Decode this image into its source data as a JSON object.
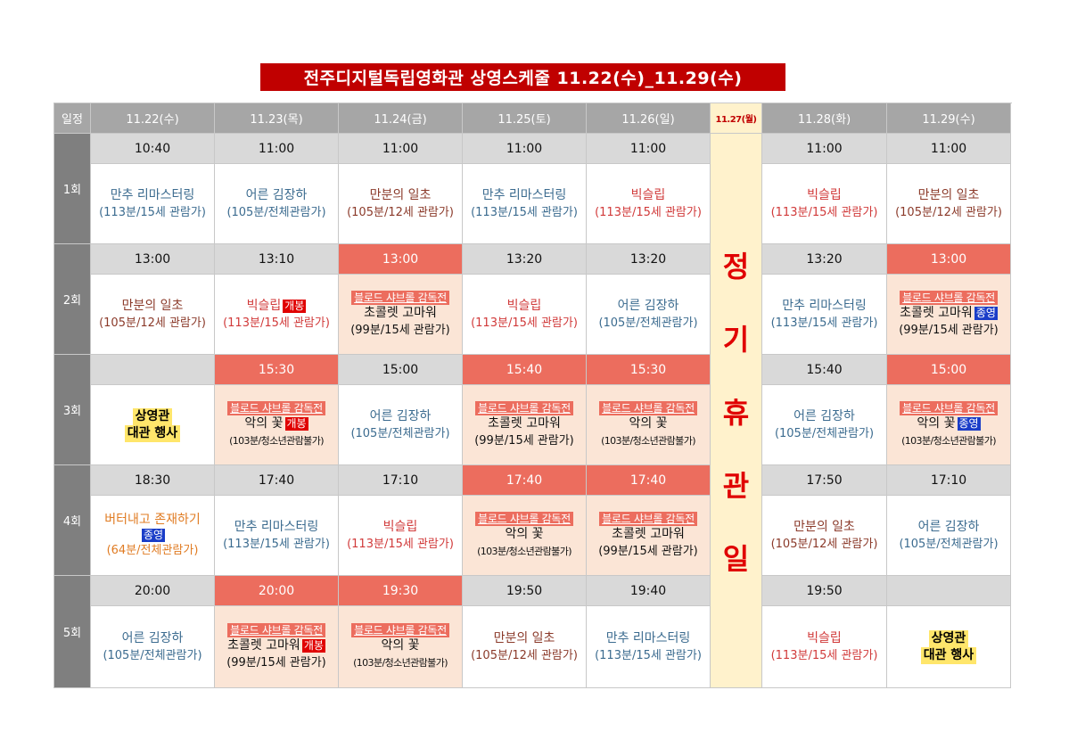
{
  "title": "전주디지털독립영화관 상영스케줄 11.22(수)_11.29(수)",
  "corner": "일정",
  "days": [
    "11.22(수)",
    "11.23(목)",
    "11.24(금)",
    "11.25(토)",
    "11.26(일)",
    "11.27(월)",
    "11.28(화)",
    "11.29(수)"
  ],
  "holiday_chars": [
    "정",
    "기",
    "휴",
    "관",
    "일"
  ],
  "rounds": [
    "1회",
    "2회",
    "3회",
    "4회",
    "5회"
  ],
  "banner_text": "블로드 샤브롤 감독전",
  "badges": {
    "open": "개봉",
    "close": "종영"
  },
  "colors": {
    "title_bg": "#c00000",
    "header_bg": "#a6a6a6",
    "time_bg": "#d9d9d9",
    "special_time_bg": "#ec6d5e",
    "special_cell_bg": "#fbe5d6",
    "holiday_bg": "#fff2cc"
  },
  "schedule": [
    [
      {
        "time": "10:40",
        "title": "만추 리마스터링",
        "info": "(113분/15세 관람가)",
        "color": "blue"
      },
      {
        "time": "11:00",
        "title": "어른 김장하",
        "info": "(105분/전체관람가)",
        "color": "blue"
      },
      {
        "time": "11:00",
        "title": "만분의 일초",
        "info": "(105분/12세 관람가)",
        "color": "brown"
      },
      {
        "time": "11:00",
        "title": "만추 리마스터링",
        "info": "(113분/15세 관람가)",
        "color": "blue"
      },
      {
        "time": "11:00",
        "title": "빅슬립",
        "info": "(113분/15세 관람가)",
        "color": "red"
      },
      {
        "time": "11:00",
        "title": "빅슬립",
        "info": "(113분/15세 관람가)",
        "color": "red"
      },
      {
        "time": "11:00",
        "title": "만분의 일초",
        "info": "(105분/12세 관람가)",
        "color": "brown"
      }
    ],
    [
      {
        "time": "13:00",
        "title": "만분의 일초",
        "info": "(105분/12세 관람가)",
        "color": "brown"
      },
      {
        "time": "13:10",
        "title": "빅슬립",
        "info": "(113분/15세 관람가)",
        "color": "red",
        "badge": "open"
      },
      {
        "time": "13:00",
        "special": true,
        "title": "초콜렛 고마워",
        "info": "(99분/15세 관람가)",
        "color": "black"
      },
      {
        "time": "13:20",
        "title": "빅슬립",
        "info": "(113분/15세 관람가)",
        "color": "red"
      },
      {
        "time": "13:20",
        "title": "어른 김장하",
        "info": "(105분/전체관람가)",
        "color": "blue"
      },
      {
        "time": "13:20",
        "title": "만추 리마스터링",
        "info": "(113분/15세 관람가)",
        "color": "blue"
      },
      {
        "time": "13:00",
        "special": true,
        "title": "초콜렛 고마워",
        "info": "(99분/15세 관람가)",
        "color": "black",
        "badge": "close"
      }
    ],
    [
      {
        "time": "",
        "event": true,
        "title": "상영관",
        "info": "대관 행사"
      },
      {
        "time": "15:30",
        "special": true,
        "title": "악의 꽃",
        "info": "(103분/청소년관람불가)",
        "color": "black",
        "badge": "open",
        "small": true
      },
      {
        "time": "15:00",
        "title": "어른 김장하",
        "info": "(105분/전체관람가)",
        "color": "blue"
      },
      {
        "time": "15:40",
        "special": true,
        "title": "초콜렛 고마워",
        "info": "(99분/15세 관람가)",
        "color": "black"
      },
      {
        "time": "15:30",
        "special": true,
        "title": "악의 꽃",
        "info": "(103분/청소년관람불가)",
        "color": "black",
        "small": true
      },
      {
        "time": "15:40",
        "title": "어른 김장하",
        "info": "(105분/전체관람가)",
        "color": "blue"
      },
      {
        "time": "15:00",
        "special": true,
        "title": "악의 꽃",
        "info": "(103분/청소년관람불가)",
        "color": "black",
        "badge": "close",
        "small": true
      }
    ],
    [
      {
        "time": "18:30",
        "title": "버터내고 존재하기",
        "info": "(64분/전체관람가)",
        "color": "orange",
        "badge": "close",
        "badge_line": true
      },
      {
        "time": "17:40",
        "title": "만추 리마스터링",
        "info": "(113분/15세 관람가)",
        "color": "blue"
      },
      {
        "time": "17:10",
        "title": "빅슬립",
        "info": "(113분/15세 관람가)",
        "color": "red"
      },
      {
        "time": "17:40",
        "special": true,
        "title": "악의 꽃",
        "info": "(103분/청소년관람불가)",
        "color": "black",
        "small": true
      },
      {
        "time": "17:40",
        "special": true,
        "title": "초콜렛 고마워",
        "info": "(99분/15세 관람가)",
        "color": "black"
      },
      {
        "time": "17:50",
        "title": "만분의 일초",
        "info": "(105분/12세 관람가)",
        "color": "brown"
      },
      {
        "time": "17:10",
        "title": "어른 김장하",
        "info": "(105분/전체관람가)",
        "color": "blue"
      }
    ],
    [
      {
        "time": "20:00",
        "title": "어른 김장하",
        "info": "(105분/전체관람가)",
        "color": "blue"
      },
      {
        "time": "20:00",
        "special": true,
        "title": "초콜렛 고마워",
        "info": "(99분/15세 관람가)",
        "color": "black",
        "badge": "open"
      },
      {
        "time": "19:30",
        "special": true,
        "title": "악의 꽃",
        "info": "(103분/청소년관람불가)",
        "color": "black",
        "small": true
      },
      {
        "time": "19:50",
        "title": "만분의 일초",
        "info": "(105분/12세 관람가)",
        "color": "brown"
      },
      {
        "time": "19:40",
        "title": "만추 리마스터링",
        "info": "(113분/15세 관람가)",
        "color": "blue"
      },
      {
        "time": "19:50",
        "title": "빅슬립",
        "info": "(113분/15세 관람가)",
        "color": "red"
      },
      {
        "time": "",
        "event": true,
        "title": "상영관",
        "info": "대관 행사"
      }
    ]
  ]
}
